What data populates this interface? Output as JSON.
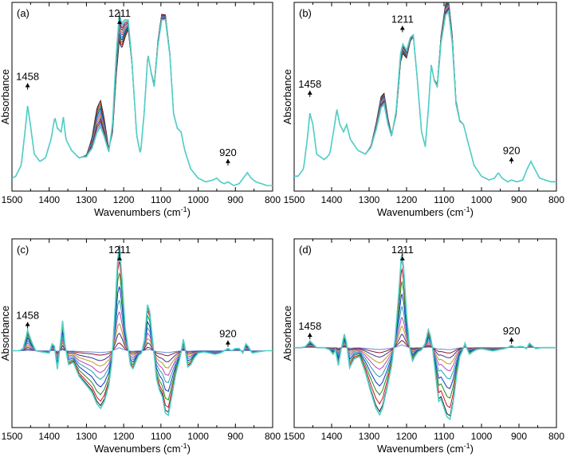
{
  "chart_data": [
    {
      "panel": "(a)",
      "type": "line",
      "xlabel": "Wavenumbers (cm-1)",
      "ylabel": "Absorbance",
      "xlim": [
        1500,
        800
      ],
      "xticks": [
        1500,
        1400,
        1300,
        1200,
        1100,
        1000,
        900,
        800
      ],
      "annotations": [
        {
          "text": "1458",
          "x": 1458
        },
        {
          "text": "1211",
          "x": 1211
        },
        {
          "text": "920",
          "x": 920
        }
      ],
      "series_colors": [
        "#202020",
        "#d01020",
        "#1f8f1f",
        "#1030c0",
        "#20a0b0",
        "#c040c0",
        "#b0a020",
        "#40308a",
        "#8a1a2a",
        "#6a8ad8",
        "#50d0c8"
      ],
      "base": [
        [
          1500,
          0.05
        ],
        [
          1490,
          0.06
        ],
        [
          1475,
          0.12
        ],
        [
          1465,
          0.3
        ],
        [
          1458,
          0.44
        ],
        [
          1452,
          0.36
        ],
        [
          1440,
          0.18
        ],
        [
          1425,
          0.14
        ],
        [
          1410,
          0.16
        ],
        [
          1395,
          0.26
        ],
        [
          1385,
          0.38
        ],
        [
          1378,
          0.32
        ],
        [
          1368,
          0.3
        ],
        [
          1362,
          0.38
        ],
        [
          1355,
          0.26
        ],
        [
          1340,
          0.2
        ],
        [
          1320,
          0.16
        ],
        [
          1300,
          0.17
        ],
        [
          1285,
          0.24
        ],
        [
          1272,
          0.36
        ],
        [
          1262,
          0.4
        ],
        [
          1252,
          0.32
        ],
        [
          1240,
          0.2
        ],
        [
          1230,
          0.32
        ],
        [
          1220,
          0.66
        ],
        [
          1212,
          0.86
        ],
        [
          1205,
          0.82
        ],
        [
          1196,
          0.86
        ],
        [
          1188,
          0.88
        ],
        [
          1178,
          0.68
        ],
        [
          1165,
          0.28
        ],
        [
          1155,
          0.18
        ],
        [
          1145,
          0.4
        ],
        [
          1135,
          0.72
        ],
        [
          1126,
          0.62
        ],
        [
          1118,
          0.55
        ],
        [
          1108,
          0.78
        ],
        [
          1098,
          0.92
        ],
        [
          1088,
          0.92
        ],
        [
          1076,
          0.72
        ],
        [
          1066,
          0.4
        ],
        [
          1056,
          0.32
        ],
        [
          1046,
          0.3
        ],
        [
          1036,
          0.2
        ],
        [
          1020,
          0.1
        ],
        [
          1000,
          0.05
        ],
        [
          980,
          0.03
        ],
        [
          960,
          0.04
        ],
        [
          950,
          0.05
        ],
        [
          940,
          0.03
        ],
        [
          930,
          0.02
        ],
        [
          920,
          0.03
        ],
        [
          905,
          0.01
        ],
        [
          890,
          0.02
        ],
        [
          875,
          0.06
        ],
        [
          868,
          0.08
        ],
        [
          858,
          0.05
        ],
        [
          845,
          0.03
        ],
        [
          830,
          0.02
        ],
        [
          815,
          0.01
        ],
        [
          800,
          0.01
        ]
      ],
      "variation": [
        {
          "x": 1265,
          "delta": 0.14
        },
        {
          "x": 1210,
          "delta": -0.14
        },
        {
          "x": 1098,
          "delta": 0.03
        }
      ]
    },
    {
      "panel": "(b)",
      "type": "line",
      "xlabel": "Wavenumbers (cm-1)",
      "ylabel": "Absorbance",
      "xlim": [
        1500,
        800
      ],
      "xticks": [
        1500,
        1400,
        1300,
        1200,
        1100,
        1000,
        900,
        800
      ],
      "annotations": [
        {
          "text": "1458",
          "x": 1458
        },
        {
          "text": "1211",
          "x": 1211
        },
        {
          "text": "920",
          "x": 920
        }
      ],
      "series_colors": [
        "#202020",
        "#d01020",
        "#1f8f1f",
        "#1030c0",
        "#20a0b0",
        "#c040c0",
        "#b0a020",
        "#40308a",
        "#8a1a2a",
        "#6a8ad8",
        "#50d0c8"
      ],
      "base": [
        [
          1500,
          0.06
        ],
        [
          1490,
          0.06
        ],
        [
          1475,
          0.1
        ],
        [
          1465,
          0.26
        ],
        [
          1458,
          0.4
        ],
        [
          1450,
          0.34
        ],
        [
          1440,
          0.18
        ],
        [
          1420,
          0.15
        ],
        [
          1405,
          0.18
        ],
        [
          1395,
          0.3
        ],
        [
          1386,
          0.42
        ],
        [
          1378,
          0.34
        ],
        [
          1368,
          0.3
        ],
        [
          1360,
          0.34
        ],
        [
          1350,
          0.26
        ],
        [
          1330,
          0.2
        ],
        [
          1310,
          0.18
        ],
        [
          1295,
          0.22
        ],
        [
          1280,
          0.34
        ],
        [
          1268,
          0.46
        ],
        [
          1260,
          0.48
        ],
        [
          1250,
          0.36
        ],
        [
          1240,
          0.28
        ],
        [
          1228,
          0.4
        ],
        [
          1216,
          0.7
        ],
        [
          1210,
          0.75
        ],
        [
          1200,
          0.72
        ],
        [
          1190,
          0.8
        ],
        [
          1182,
          0.82
        ],
        [
          1172,
          0.6
        ],
        [
          1160,
          0.3
        ],
        [
          1150,
          0.22
        ],
        [
          1142,
          0.42
        ],
        [
          1134,
          0.66
        ],
        [
          1126,
          0.58
        ],
        [
          1118,
          0.55
        ],
        [
          1108,
          0.8
        ],
        [
          1096,
          0.96
        ],
        [
          1088,
          0.98
        ],
        [
          1078,
          0.8
        ],
        [
          1068,
          0.46
        ],
        [
          1058,
          0.36
        ],
        [
          1048,
          0.34
        ],
        [
          1038,
          0.26
        ],
        [
          1020,
          0.12
        ],
        [
          1000,
          0.06
        ],
        [
          980,
          0.04
        ],
        [
          965,
          0.05
        ],
        [
          955,
          0.08
        ],
        [
          945,
          0.05
        ],
        [
          930,
          0.03
        ],
        [
          920,
          0.04
        ],
        [
          905,
          0.03
        ],
        [
          890,
          0.04
        ],
        [
          878,
          0.1
        ],
        [
          868,
          0.14
        ],
        [
          858,
          0.1
        ],
        [
          845,
          0.05
        ],
        [
          830,
          0.04
        ],
        [
          815,
          0.03
        ],
        [
          800,
          0.03
        ]
      ],
      "variation": [
        {
          "x": 1265,
          "delta": 0.06
        },
        {
          "x": 1210,
          "delta": -0.05
        },
        {
          "x": 1092,
          "delta": 0.06
        }
      ]
    },
    {
      "panel": "(c)",
      "type": "line",
      "xlabel": "Wavenumbers (cm-1)",
      "ylabel": "Absorbance",
      "xlim": [
        1500,
        800
      ],
      "xticks": [
        1500,
        1400,
        1300,
        1200,
        1100,
        1000,
        900,
        800
      ],
      "annotations": [
        {
          "text": "1458",
          "x": 1458
        },
        {
          "text": "1211",
          "x": 1211
        },
        {
          "text": "920",
          "x": 920
        }
      ],
      "series_colors": [
        "#202020",
        "#d01020",
        "#1f8f1f",
        "#1030c0",
        "#20a0b0",
        "#c040c0",
        "#b0a020",
        "#40308a",
        "#8a1a2a",
        "#6a8ad8",
        "#50d0c8"
      ],
      "base": [
        [
          1500,
          0.0
        ],
        [
          1480,
          0.0
        ],
        [
          1470,
          0.02
        ],
        [
          1462,
          0.12
        ],
        [
          1458,
          0.18
        ],
        [
          1452,
          0.12
        ],
        [
          1445,
          0.06
        ],
        [
          1436,
          0.0
        ],
        [
          1420,
          -0.01
        ],
        [
          1400,
          -0.02
        ],
        [
          1392,
          0.06
        ],
        [
          1386,
          0.04
        ],
        [
          1378,
          -0.16
        ],
        [
          1370,
          0.06
        ],
        [
          1364,
          0.26
        ],
        [
          1358,
          0.06
        ],
        [
          1348,
          -0.12
        ],
        [
          1335,
          -0.1
        ],
        [
          1320,
          -0.22
        ],
        [
          1300,
          -0.3
        ],
        [
          1285,
          -0.36
        ],
        [
          1272,
          -0.46
        ],
        [
          1262,
          -0.5
        ],
        [
          1252,
          -0.44
        ],
        [
          1240,
          -0.3
        ],
        [
          1232,
          -0.1
        ],
        [
          1224,
          0.3
        ],
        [
          1216,
          0.8
        ],
        [
          1211,
          0.9
        ],
        [
          1204,
          0.6
        ],
        [
          1196,
          0.2
        ],
        [
          1188,
          0.02
        ],
        [
          1182,
          -0.12
        ],
        [
          1175,
          -0.16
        ],
        [
          1168,
          -0.1
        ],
        [
          1160,
          -0.04
        ],
        [
          1152,
          -0.02
        ],
        [
          1144,
          0.1
        ],
        [
          1136,
          0.4
        ],
        [
          1130,
          0.34
        ],
        [
          1124,
          0.14
        ],
        [
          1118,
          -0.04
        ],
        [
          1112,
          -0.24
        ],
        [
          1104,
          -0.34
        ],
        [
          1096,
          -0.4
        ],
        [
          1088,
          -0.54
        ],
        [
          1080,
          -0.56
        ],
        [
          1070,
          -0.38
        ],
        [
          1060,
          -0.2
        ],
        [
          1050,
          -0.08
        ],
        [
          1044,
          0.02
        ],
        [
          1040,
          0.1
        ],
        [
          1036,
          0.04
        ],
        [
          1028,
          -0.14
        ],
        [
          1020,
          -0.12
        ],
        [
          1010,
          -0.06
        ],
        [
          1000,
          -0.02
        ],
        [
          985,
          -0.01
        ],
        [
          970,
          -0.02
        ],
        [
          955,
          -0.03
        ],
        [
          940,
          -0.02
        ],
        [
          930,
          0.0
        ],
        [
          920,
          0.02
        ],
        [
          910,
          0.0
        ],
        [
          900,
          0.02
        ],
        [
          890,
          0.02
        ],
        [
          880,
          -0.02
        ],
        [
          872,
          0.06
        ],
        [
          866,
          0.04
        ],
        [
          855,
          -0.02
        ],
        [
          840,
          -0.01
        ],
        [
          820,
          0.0
        ],
        [
          800,
          0.0
        ]
      ],
      "scales": [
        1.0,
        0.92,
        0.8,
        0.66,
        0.52,
        0.4,
        0.28,
        0.18,
        0.08,
        0.03,
        1.05
      ]
    },
    {
      "panel": "(d)",
      "type": "line",
      "xlabel": "Wavenumbers (cm-1)",
      "ylabel": "Absorbance",
      "xlim": [
        1500,
        800
      ],
      "xticks": [
        1500,
        1400,
        1300,
        1200,
        1100,
        1000,
        900,
        800
      ],
      "annotations": [
        {
          "text": "1458",
          "x": 1458
        },
        {
          "text": "1211",
          "x": 1211
        },
        {
          "text": "920",
          "x": 920
        }
      ],
      "series_colors": [
        "#202020",
        "#d01020",
        "#1f8f1f",
        "#1030c0",
        "#20a0b0",
        "#c040c0",
        "#b0a020",
        "#40308a",
        "#8a1a2a",
        "#6a8ad8",
        "#50d0c8"
      ],
      "base": [
        [
          1500,
          0.0
        ],
        [
          1480,
          0.0
        ],
        [
          1470,
          0.01
        ],
        [
          1462,
          0.04
        ],
        [
          1458,
          0.06
        ],
        [
          1452,
          0.04
        ],
        [
          1440,
          0.0
        ],
        [
          1420,
          0.0
        ],
        [
          1405,
          -0.02
        ],
        [
          1396,
          -0.06
        ],
        [
          1390,
          -0.02
        ],
        [
          1382,
          -0.16
        ],
        [
          1375,
          -0.02
        ],
        [
          1366,
          0.12
        ],
        [
          1360,
          0.04
        ],
        [
          1352,
          -0.18
        ],
        [
          1340,
          -0.1
        ],
        [
          1325,
          -0.08
        ],
        [
          1310,
          -0.22
        ],
        [
          1295,
          -0.4
        ],
        [
          1282,
          -0.54
        ],
        [
          1272,
          -0.6
        ],
        [
          1264,
          -0.54
        ],
        [
          1252,
          -0.36
        ],
        [
          1240,
          -0.16
        ],
        [
          1230,
          0.1
        ],
        [
          1220,
          0.52
        ],
        [
          1213,
          0.86
        ],
        [
          1208,
          0.72
        ],
        [
          1200,
          0.3
        ],
        [
          1192,
          0.0
        ],
        [
          1184,
          -0.12
        ],
        [
          1178,
          -0.08
        ],
        [
          1170,
          -0.04
        ],
        [
          1160,
          -0.02
        ],
        [
          1150,
          0.04
        ],
        [
          1142,
          0.16
        ],
        [
          1136,
          0.1
        ],
        [
          1130,
          -0.02
        ],
        [
          1122,
          -0.26
        ],
        [
          1114,
          -0.48
        ],
        [
          1108,
          -0.46
        ],
        [
          1100,
          -0.54
        ],
        [
          1092,
          -0.62
        ],
        [
          1084,
          -0.64
        ],
        [
          1076,
          -0.5
        ],
        [
          1066,
          -0.24
        ],
        [
          1058,
          -0.08
        ],
        [
          1050,
          -0.02
        ],
        [
          1044,
          0.04
        ],
        [
          1040,
          0.0
        ],
        [
          1032,
          -0.06
        ],
        [
          1025,
          -0.04
        ],
        [
          1015,
          -0.02
        ],
        [
          1000,
          -0.01
        ],
        [
          985,
          -0.02
        ],
        [
          970,
          -0.03
        ],
        [
          955,
          -0.02
        ],
        [
          940,
          -0.01
        ],
        [
          930,
          0.0
        ],
        [
          920,
          0.02
        ],
        [
          910,
          0.0
        ],
        [
          900,
          0.01
        ],
        [
          890,
          0.01
        ],
        [
          880,
          -0.01
        ],
        [
          872,
          0.04
        ],
        [
          866,
          0.02
        ],
        [
          855,
          -0.01
        ],
        [
          840,
          0.0
        ],
        [
          820,
          0.0
        ],
        [
          800,
          0.0
        ]
      ],
      "scales": [
        1.0,
        0.88,
        0.74,
        0.6,
        0.46,
        0.34,
        0.24,
        0.15,
        0.08,
        0.03,
        1.05
      ]
    }
  ]
}
